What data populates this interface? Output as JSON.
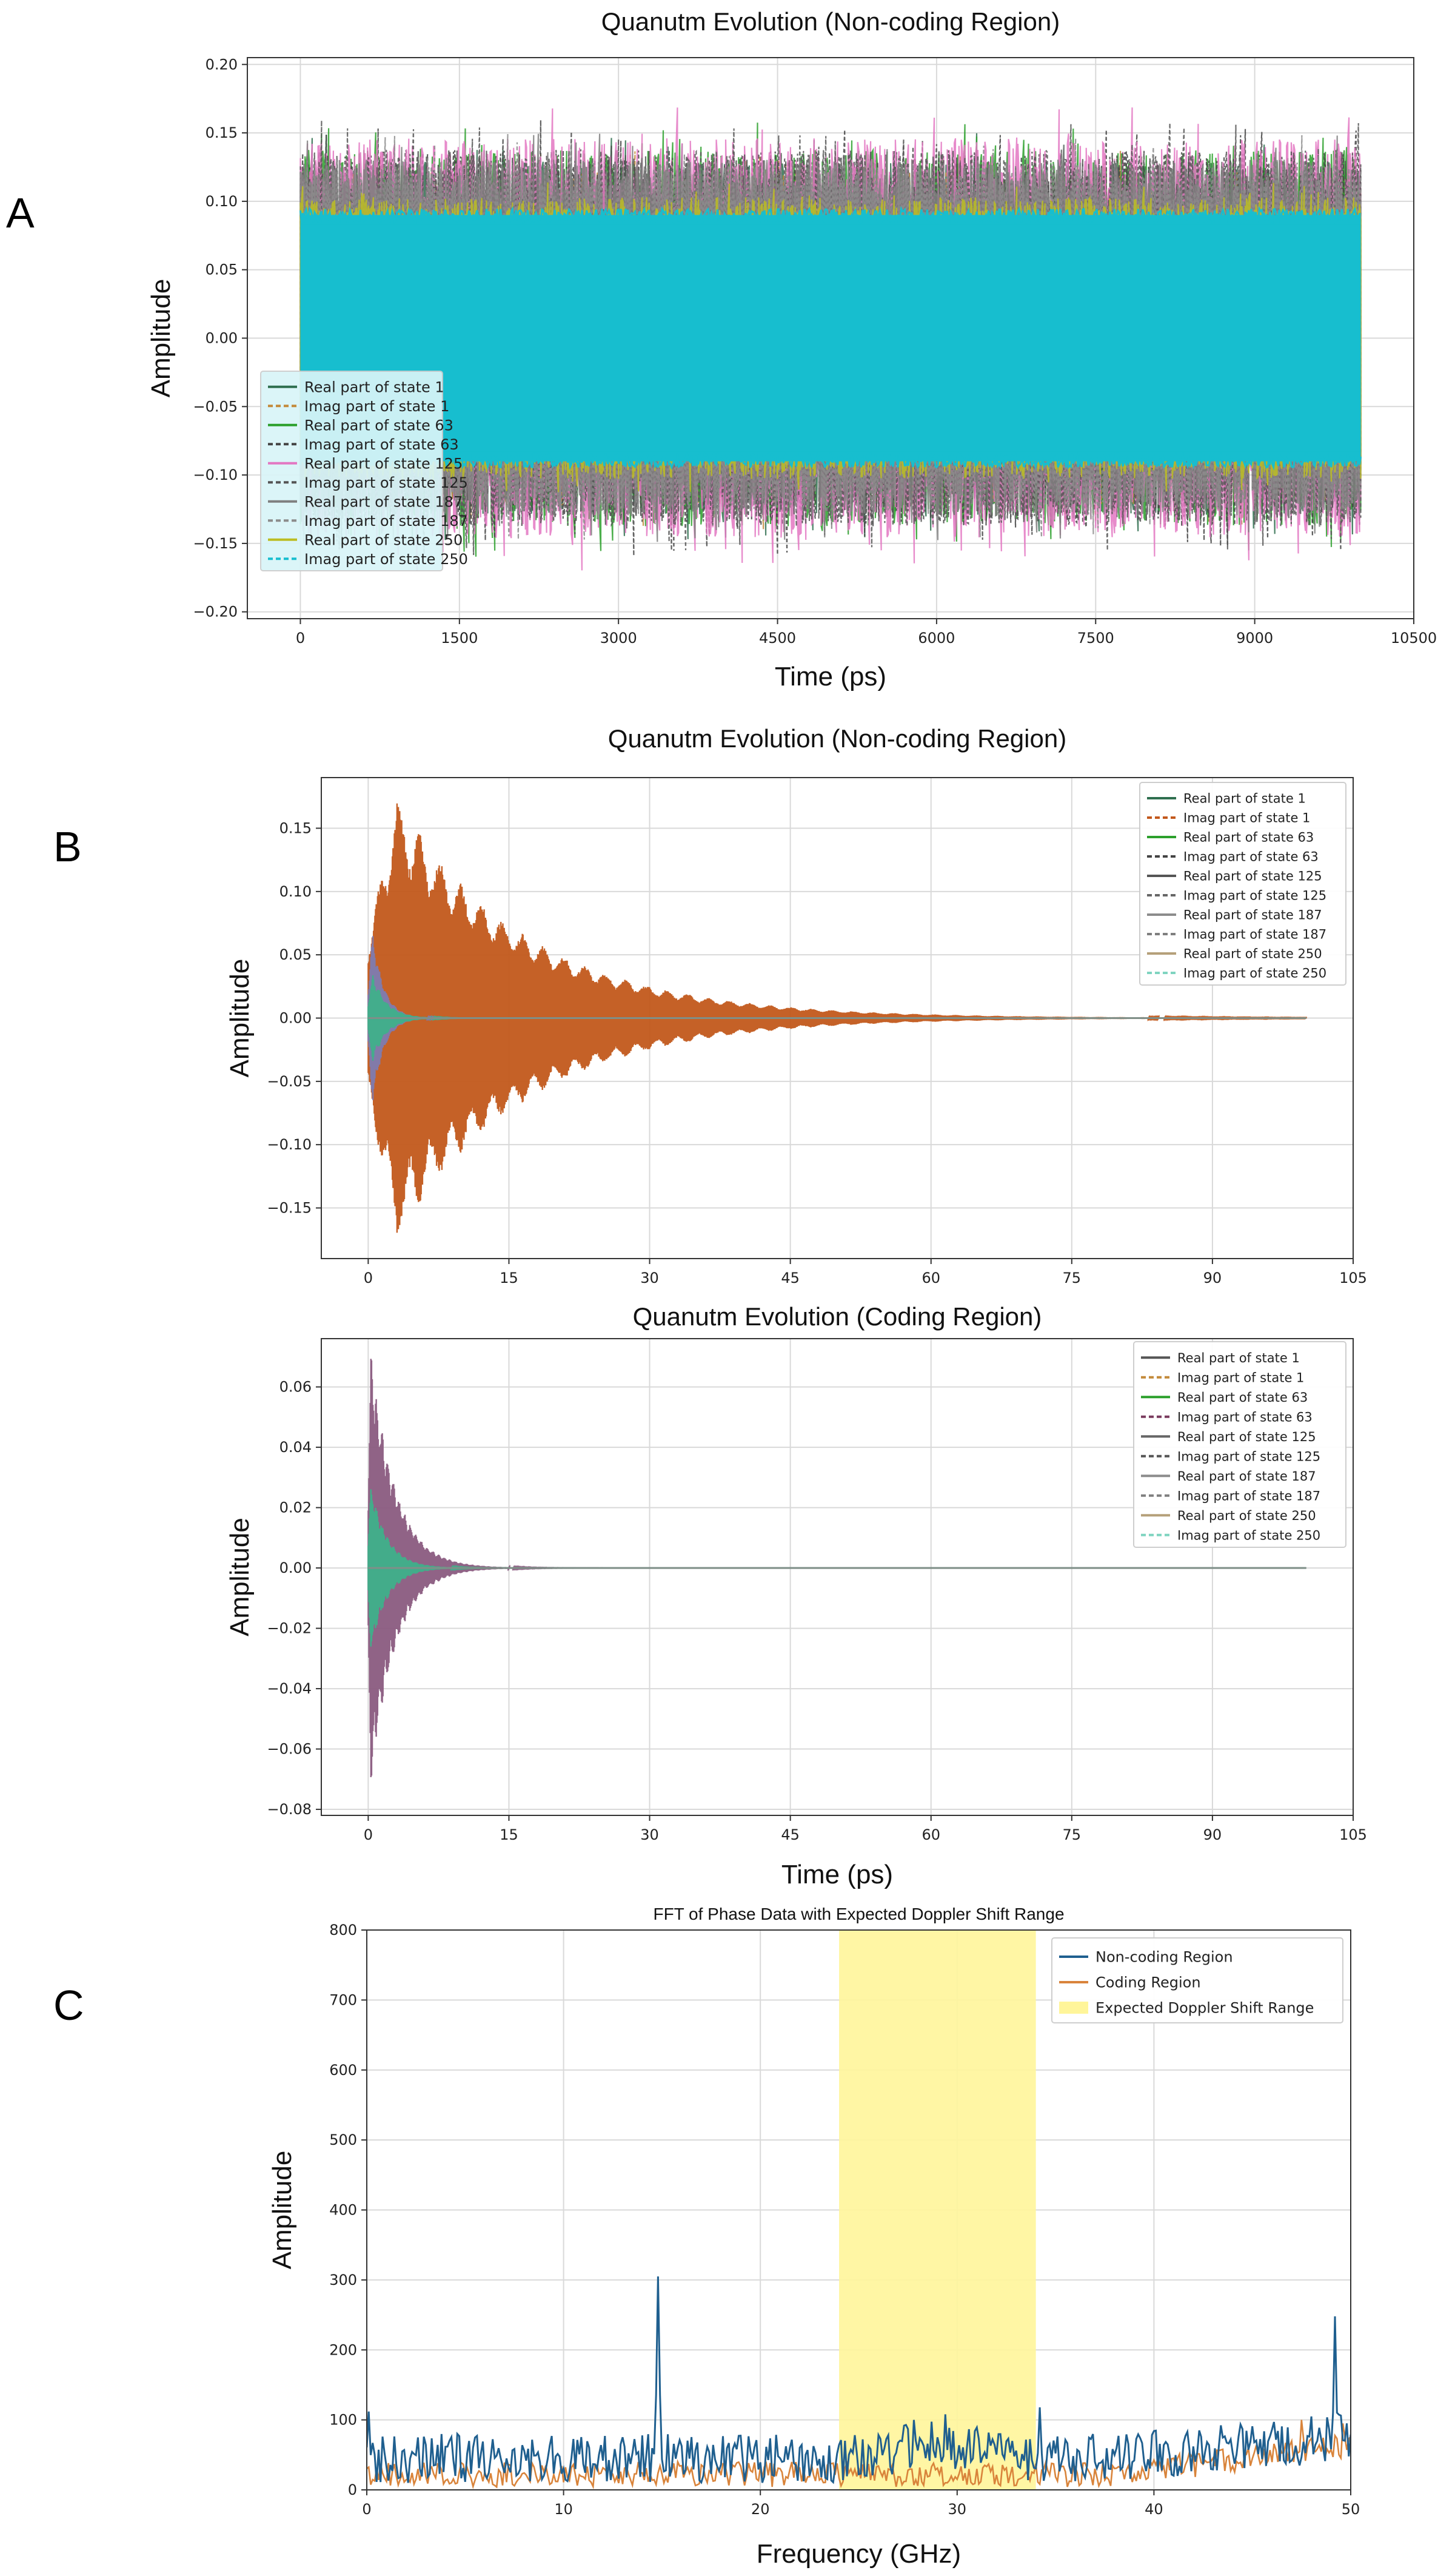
{
  "figure": {
    "panel_labels": [
      "A",
      "B",
      "C"
    ]
  },
  "chart_data": [
    {
      "id": "A",
      "type": "line",
      "title": "Quanutm Evolution (Non-coding Region)",
      "xlabel": "Time (ps)",
      "ylabel": "Amplitude",
      "xlim": [
        -500,
        10500
      ],
      "ylim": [
        -0.205,
        0.205
      ],
      "xticks": [
        0,
        1500,
        3000,
        4500,
        6000,
        7500,
        9000,
        10500
      ],
      "yticks": [
        -0.2,
        -0.15,
        -0.1,
        -0.05,
        0.0,
        0.05,
        0.1,
        0.15,
        0.2
      ],
      "xtick_labels": [
        "0",
        "1500",
        "3000",
        "4500",
        "6000",
        "7500",
        "9000",
        "10500"
      ],
      "ytick_labels": [
        "−0.20",
        "−0.15",
        "−0.10",
        "−0.05",
        "0.00",
        "0.05",
        "0.10",
        "0.15",
        "0.20"
      ],
      "grid": true,
      "legend_position": "lower-left",
      "t_range": [
        0,
        10000
      ],
      "series": [
        {
          "name": "Real part of state 1",
          "color": "#2f6f4f",
          "dash": false,
          "band_min": 0.08,
          "band_max": 0.15,
          "style": "noise"
        },
        {
          "name": "Imag part of state 1",
          "color": "#c38a3a",
          "dash": true,
          "band_min": 0.08,
          "band_max": 0.14,
          "style": "noise"
        },
        {
          "name": "Real part of state 63",
          "color": "#2ca02c",
          "dash": false,
          "band_min": 0.085,
          "band_max": 0.16,
          "style": "noise"
        },
        {
          "name": "Imag part of state 63",
          "color": "#444444",
          "dash": true,
          "band_min": 0.085,
          "band_max": 0.16,
          "style": "noise"
        },
        {
          "name": "Real part of state 125",
          "color": "#e377c2",
          "dash": false,
          "band_min": 0.09,
          "band_max": 0.17,
          "style": "noise"
        },
        {
          "name": "Imag part of state 125",
          "color": "#555555",
          "dash": true,
          "band_min": 0.085,
          "band_max": 0.16,
          "style": "noise"
        },
        {
          "name": "Real part of state 187",
          "color": "#7f7f7f",
          "dash": false,
          "band_min": 0.085,
          "band_max": 0.15,
          "style": "noise"
        },
        {
          "name": "Imag part of state 187",
          "color": "#8c8c8c",
          "dash": true,
          "band_min": 0.08,
          "band_max": 0.15,
          "style": "noise"
        },
        {
          "name": "Real part of state 250",
          "color": "#bcbd22",
          "dash": false,
          "band_min": 0.075,
          "band_max": 0.115,
          "style": "noise"
        },
        {
          "name": "Imag part of state 250",
          "color": "#17becf",
          "dash": true,
          "band_min": 0.0,
          "band_max": 0.09,
          "style": "fill"
        }
      ]
    },
    {
      "id": "B1",
      "type": "line",
      "title": "Quanutm Evolution (Non-coding Region)",
      "xlabel": "",
      "ylabel": "Amplitude",
      "xlim": [
        -5,
        105
      ],
      "ylim": [
        -0.19,
        0.19
      ],
      "xticks": [
        0,
        15,
        30,
        45,
        60,
        75,
        90,
        105
      ],
      "yticks": [
        -0.15,
        -0.1,
        -0.05,
        0.0,
        0.05,
        0.1,
        0.15
      ],
      "xtick_labels": [
        "0",
        "15",
        "30",
        "45",
        "60",
        "75",
        "90",
        "105"
      ],
      "ytick_labels": [
        "−0.15",
        "−0.10",
        "−0.05",
        "0.00",
        "0.05",
        "0.10",
        "0.15"
      ],
      "grid": true,
      "legend_position": "top-right",
      "t_range": [
        0,
        100
      ],
      "envelopes": [
        {
          "color": "#c2581b",
          "peak": 0.175,
          "peak_t": 3,
          "decay": 14,
          "rise": 1.5,
          "oscillation": 0.25,
          "period": 2.2
        },
        {
          "color": "#7e7bb0",
          "peak": 0.07,
          "peak_t": 0.5,
          "decay": 1.2,
          "rise": 0.2,
          "oscillation": 0.2,
          "period": 0.8
        },
        {
          "color": "#3fb08a",
          "peak": 0.035,
          "peak_t": 0.5,
          "decay": 1.5,
          "rise": 0.2,
          "oscillation": 0.2,
          "period": 0.8
        }
      ],
      "series": [
        {
          "name": "Real part of state 1",
          "color": "#2f6f4f",
          "dash": false
        },
        {
          "name": "Imag part of state 1",
          "color": "#c2581b",
          "dash": true
        },
        {
          "name": "Real part of state 63",
          "color": "#2ca02c",
          "dash": false
        },
        {
          "name": "Imag part of state 63",
          "color": "#444444",
          "dash": true
        },
        {
          "name": "Real part of state 125",
          "color": "#555555",
          "dash": false
        },
        {
          "name": "Imag part of state 125",
          "color": "#666666",
          "dash": true
        },
        {
          "name": "Real part of state 187",
          "color": "#8c8c8c",
          "dash": false
        },
        {
          "name": "Imag part of state 187",
          "color": "#7f7f7f",
          "dash": true
        },
        {
          "name": "Real part of state 250",
          "color": "#b5a07a",
          "dash": false
        },
        {
          "name": "Imag part of state 250",
          "color": "#7fd4c0",
          "dash": true
        }
      ]
    },
    {
      "id": "B2",
      "type": "line",
      "title": "Quanutm Evolution (Coding Region)",
      "xlabel": "Time (ps)",
      "ylabel": "Amplitude",
      "xlim": [
        -5,
        105
      ],
      "ylim": [
        -0.082,
        0.076
      ],
      "xticks": [
        0,
        15,
        30,
        45,
        60,
        75,
        90,
        105
      ],
      "yticks": [
        -0.08,
        -0.06,
        -0.04,
        -0.02,
        0.0,
        0.02,
        0.04,
        0.06
      ],
      "xtick_labels": [
        "0",
        "15",
        "30",
        "45",
        "60",
        "75",
        "90",
        "105"
      ],
      "ytick_labels": [
        "−0.08",
        "−0.06",
        "−0.04",
        "−0.02",
        "0.00",
        "0.02",
        "0.04",
        "0.06"
      ],
      "grid": true,
      "legend_position": "top-right",
      "t_range": [
        0,
        100
      ],
      "envelopes": [
        {
          "color": "#8a5b80",
          "peak": 0.072,
          "peak_t": 0.3,
          "decay": 2.6,
          "rise": 0.1,
          "oscillation": 0.2,
          "period": 0.6
        },
        {
          "color": "#3fb08a",
          "peak": 0.028,
          "peak_t": 0.3,
          "decay": 1.8,
          "rise": 0.1,
          "oscillation": 0.2,
          "period": 0.6
        }
      ],
      "series": [
        {
          "name": "Real part of state 1",
          "color": "#555555",
          "dash": false
        },
        {
          "name": "Imag part of state 1",
          "color": "#c38a3a",
          "dash": true
        },
        {
          "name": "Real part of state 63",
          "color": "#2ca02c",
          "dash": false
        },
        {
          "name": "Imag part of state 63",
          "color": "#7a3b5e",
          "dash": true
        },
        {
          "name": "Real part of state 125",
          "color": "#666666",
          "dash": false
        },
        {
          "name": "Imag part of state 125",
          "color": "#555555",
          "dash": true
        },
        {
          "name": "Real part of state 187",
          "color": "#8c8c8c",
          "dash": false
        },
        {
          "name": "Imag part of state 187",
          "color": "#7f7f7f",
          "dash": true
        },
        {
          "name": "Real part of state 250",
          "color": "#b5a07a",
          "dash": false
        },
        {
          "name": "Imag part of state 250",
          "color": "#7fd4c0",
          "dash": true
        }
      ]
    },
    {
      "id": "C",
      "type": "line",
      "title": "FFT of Phase Data with Expected Doppler Shift Range",
      "xlabel": "Frequency (GHz)",
      "ylabel": "Amplitude",
      "xlim": [
        0,
        50
      ],
      "ylim": [
        0,
        800
      ],
      "xticks": [
        0,
        10,
        20,
        30,
        40,
        50
      ],
      "yticks": [
        0,
        100,
        200,
        300,
        400,
        500,
        600,
        700,
        800
      ],
      "xtick_labels": [
        "0",
        "10",
        "20",
        "30",
        "40",
        "50"
      ],
      "ytick_labels": [
        "0",
        "100",
        "200",
        "300",
        "400",
        "500",
        "600",
        "700",
        "800"
      ],
      "grid": true,
      "legend_position": "top-right",
      "shaded_range": {
        "label": "Expected Doppler Shift Range",
        "x": [
          24,
          34
        ],
        "color": "#fff59a"
      },
      "series": [
        {
          "name": "Non-coding Region",
          "color": "#1f5f8f",
          "base": 45,
          "jitter": 35,
          "peaks": [
            {
              "x": 0.1,
              "y": 112
            },
            {
              "x": 14.8,
              "y": 305
            },
            {
              "x": 29.4,
              "y": 108
            },
            {
              "x": 34.2,
              "y": 118
            },
            {
              "x": 49.2,
              "y": 248
            }
          ]
        },
        {
          "name": "Coding Region",
          "color": "#d9843b",
          "base": 22,
          "jitter": 18,
          "peaks": [
            {
              "x": 47.5,
              "y": 100
            },
            {
              "x": 49.6,
              "y": 95
            }
          ]
        }
      ]
    }
  ]
}
